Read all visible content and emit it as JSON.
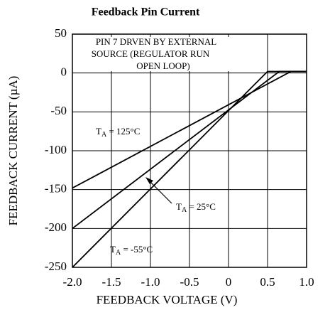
{
  "chart_data": {
    "type": "line",
    "title": "Feedback Pin Current",
    "x_label": "FEEDBACK VOLTAGE (V)",
    "y_label": "FEEDBACK CURRENT (µA)",
    "xlim": [
      -2,
      1
    ],
    "ylim": [
      -250,
      50
    ],
    "xticks": [
      {
        "value": -2,
        "label": "-2.0"
      },
      -1.5,
      {
        "value": -1,
        "label": "-1.0"
      },
      -0.5,
      0,
      0.5,
      {
        "value": 1,
        "label": "1.0"
      }
    ],
    "yticks": [
      50,
      0,
      -50,
      -100,
      -150,
      -200,
      -250
    ],
    "grid": true,
    "series": [
      {
        "color": "#000000",
        "x": [
          -2,
          0.5,
          1
        ],
        "values": [
          -250,
          2,
          2
        ]
      },
      {
        "color": "#000000",
        "x": [
          -2,
          0.65,
          1
        ],
        "values": [
          -200,
          2,
          2
        ]
      },
      {
        "color": "#000000",
        "x": [
          -2,
          0.8,
          1
        ],
        "values": [
          -148,
          2,
          2
        ]
      }
    ],
    "note": [
      "PIN 7 DRVEN BY EXTERNAL",
      "SOURCE (REGULATOR RUN",
      "OPEN LOOP)"
    ],
    "annotations": [
      {
        "base": "T",
        "sub": "A",
        "rest": " = 125°C"
      },
      {
        "base": "T",
        "sub": "A",
        "rest": " = 25°C"
      },
      {
        "base": "T",
        "sub": "A",
        "rest": " = -55°C"
      }
    ]
  }
}
